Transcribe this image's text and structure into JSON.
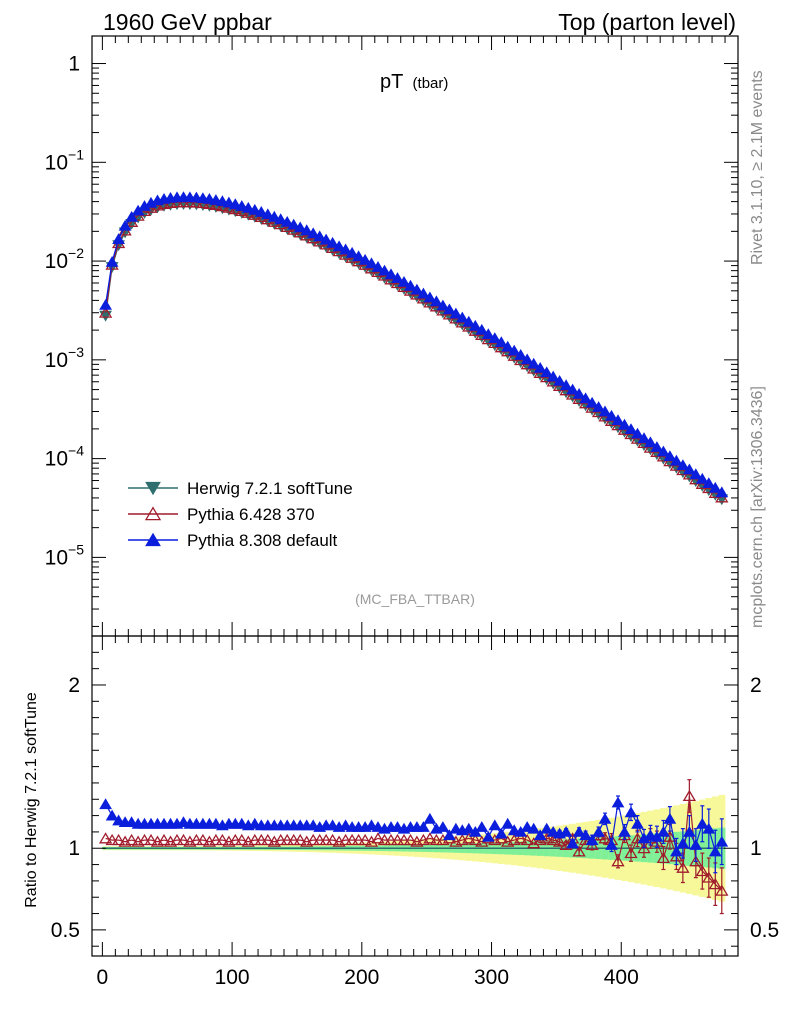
{
  "header": {
    "left": "1960 GeV ppbar",
    "right": "Top (parton level)"
  },
  "side_labels": {
    "rivet": "Rivet 3.1.10, ≥ 2.1M events",
    "mcplots": "mcplots.cern.ch [arXiv:1306.3436]"
  },
  "analysis_tag": "(MC_FBA_TTBAR)",
  "chart_data": [
    {
      "type": "scatter",
      "panel": "main",
      "title": "pT",
      "title_sub": "(tbar)",
      "ylog": true,
      "xlim": [
        -8,
        490
      ],
      "ylim": [
        1.6e-06,
        1.9
      ],
      "y_ticks": [
        {
          "v": 1,
          "label": "1"
        },
        {
          "v": 0.1,
          "label": "10",
          "exp": "−1"
        },
        {
          "v": 0.01,
          "label": "10",
          "exp": "−2"
        },
        {
          "v": 0.001,
          "label": "10",
          "exp": "−3"
        },
        {
          "v": 0.0001,
          "label": "10",
          "exp": "−4"
        },
        {
          "v": 1e-05,
          "label": "10",
          "exp": "−5"
        }
      ],
      "x": [
        2.5,
        7.5,
        12.5,
        17.5,
        22.5,
        27.5,
        32.5,
        37.5,
        42.5,
        47.5,
        52.5,
        57.5,
        62.5,
        67.5,
        72.5,
        77.5,
        82.5,
        87.5,
        92.5,
        97.5,
        102.5,
        107.5,
        112.5,
        117.5,
        122.5,
        127.5,
        132.5,
        137.5,
        142.5,
        147.5,
        152.5,
        157.5,
        162.5,
        167.5,
        172.5,
        177.5,
        182.5,
        187.5,
        192.5,
        197.5,
        202.5,
        207.5,
        212.5,
        217.5,
        222.5,
        227.5,
        232.5,
        237.5,
        242.5,
        247.5,
        252.5,
        257.5,
        262.5,
        267.5,
        272.5,
        277.5,
        282.5,
        287.5,
        292.5,
        297.5,
        302.5,
        307.5,
        312.5,
        317.5,
        322.5,
        327.5,
        332.5,
        337.5,
        342.5,
        347.5,
        352.5,
        357.5,
        362.5,
        367.5,
        372.5,
        377.5,
        382.5,
        387.5,
        392.5,
        397.5,
        402.5,
        407.5,
        412.5,
        417.5,
        422.5,
        427.5,
        432.5,
        437.5,
        442.5,
        447.5,
        452.5,
        457.5,
        462.5,
        467.5,
        472.5,
        477.5
      ],
      "series": [
        {
          "name": "Herwig 7.2.1 softTune",
          "color": "#2f6f6f",
          "marker": "triangle-down-filled",
          "values": [
            0.0028,
            0.0087,
            0.0145,
            0.0195,
            0.0238,
            0.0276,
            0.0307,
            0.0331,
            0.0349,
            0.0362,
            0.0371,
            0.0376,
            0.0378,
            0.0377,
            0.0374,
            0.0369,
            0.0362,
            0.0353,
            0.0343,
            0.0332,
            0.032,
            0.0307,
            0.0294,
            0.0281,
            0.0267,
            0.0253,
            0.0239,
            0.0225,
            0.0212,
            0.0199,
            0.0186,
            0.0174,
            0.0162,
            0.0151,
            0.014,
            0.013,
            0.012,
            0.0111,
            0.0103,
            0.0095,
            0.00876,
            0.00806,
            0.00741,
            0.0068,
            0.00624,
            0.00572,
            0.00523,
            0.00478,
            0.00437,
            0.00399,
            0.00364,
            0.00332,
            0.00302,
            0.00275,
            0.0025,
            0.00228,
            0.00207,
            0.00188,
            0.00171,
            0.00155,
            0.00141,
            0.00128,
            0.00116,
            0.00105,
            0.00095,
            0.00086,
            0.000778,
            0.000704,
            0.000637,
            0.000576,
            0.00052,
            0.00047,
            0.000425,
            0.000384,
            0.000347,
            0.000313,
            0.000283,
            0.000255,
            0.00023,
            0.000208,
            0.000187,
            0.000169,
            0.000152,
            0.000137,
            0.000124,
            0.000111,
            0.0001,
            9e-05,
            8.1e-05,
            7.3e-05,
            6.6e-05,
            5.9e-05,
            5.3e-05,
            4.8e-05,
            4.3e-05,
            3.87e-05
          ]
        },
        {
          "name": "Pythia 6.428 370",
          "color": "#a01c2c",
          "marker": "triangle-up-open",
          "values": [
            0.003,
            0.0092,
            0.0152,
            0.0204,
            0.0249,
            0.0288,
            0.0321,
            0.0346,
            0.0365,
            0.0379,
            0.0388,
            0.0393,
            0.0395,
            0.0394,
            0.0391,
            0.0386,
            0.0379,
            0.037,
            0.0359,
            0.0347,
            0.0335,
            0.0321,
            0.0308,
            0.0294,
            0.028,
            0.0265,
            0.025,
            0.0236,
            0.0222,
            0.0208,
            0.0195,
            0.0182,
            0.017,
            0.0158,
            0.0147,
            0.0136,
            0.0126,
            0.0116,
            0.0108,
            0.00995,
            0.00917,
            0.00844,
            0.00776,
            0.00712,
            0.00653,
            0.00599,
            0.00548,
            0.00501,
            0.00458,
            0.00418,
            0.00381,
            0.00348,
            0.00316,
            0.00288,
            0.00262,
            0.00239,
            0.00217,
            0.00197,
            0.00179,
            0.00162,
            0.00148,
            0.00134,
            0.00122,
            0.0011,
            0.000995,
            0.000901,
            0.000815,
            0.000737,
            0.000667,
            0.000603,
            0.000545,
            0.000492,
            0.000445,
            0.000402,
            0.000363,
            0.000328,
            0.000296,
            0.000267,
            0.000241,
            0.000218,
            0.000196,
            0.000177,
            0.000159,
            0.000144,
            0.000129,
            0.000117,
            0.000105,
            9.42e-05,
            8.48e-05,
            7.65e-05,
            6.91e-05,
            6.18e-05,
            5.55e-05,
            5.03e-05,
            4.5e-05,
            4.05e-05
          ]
        },
        {
          "name": "Pythia 8.308 default",
          "color": "#0a1edc",
          "marker": "triangle-up-filled",
          "values": [
            0.0036,
            0.0098,
            0.0167,
            0.0228,
            0.028,
            0.0324,
            0.0361,
            0.0389,
            0.0411,
            0.0426,
            0.0436,
            0.0442,
            0.0444,
            0.0443,
            0.044,
            0.0434,
            0.0426,
            0.0415,
            0.0404,
            0.0391,
            0.0376,
            0.0361,
            0.0346,
            0.033,
            0.0314,
            0.0298,
            0.0281,
            0.0265,
            0.0249,
            0.0234,
            0.0219,
            0.0205,
            0.0191,
            0.0178,
            0.0165,
            0.0153,
            0.0141,
            0.0131,
            0.0121,
            0.0112,
            0.0103,
            0.00948,
            0.00872,
            0.008,
            0.00734,
            0.00673,
            0.00615,
            0.00562,
            0.00514,
            0.00469,
            0.00428,
            0.00391,
            0.00355,
            0.00324,
            0.00294,
            0.00268,
            0.00243,
            0.00221,
            0.00201,
            0.00182,
            0.00166,
            0.00151,
            0.00136,
            0.00124,
            0.00112,
            0.00101,
            0.000915,
            0.000828,
            0.000749,
            0.000677,
            0.000612,
            0.000553,
            0.0005,
            0.000452,
            0.000408,
            0.000368,
            0.000333,
            0.0003,
            0.000271,
            0.000245,
            0.00022,
            0.000199,
            0.000179,
            0.000161,
            0.000146,
            0.000131,
            0.000118,
            0.000106,
            9.53e-05,
            8.59e-05,
            7.76e-05,
            6.94e-05,
            6.24e-05,
            5.65e-05,
            5.06e-05,
            4.55e-05
          ]
        }
      ]
    },
    {
      "type": "scatter",
      "panel": "ratio",
      "ylabel": "Ratio to Herwig 7.2.1 softTune",
      "xlim": [
        -8,
        490
      ],
      "ylim": [
        0.34,
        2.3
      ],
      "x_ticks": [
        0,
        100,
        200,
        300,
        400
      ],
      "y_ticks": [
        0.5,
        1,
        2
      ],
      "reference": 1,
      "band_inner_color": "#7ff097",
      "band_outer_color": "#f6f89a",
      "x": [
        2.5,
        7.5,
        12.5,
        17.5,
        22.5,
        27.5,
        32.5,
        37.5,
        42.5,
        47.5,
        52.5,
        57.5,
        62.5,
        67.5,
        72.5,
        77.5,
        82.5,
        87.5,
        92.5,
        97.5,
        102.5,
        107.5,
        112.5,
        117.5,
        122.5,
        127.5,
        132.5,
        137.5,
        142.5,
        147.5,
        152.5,
        157.5,
        162.5,
        167.5,
        172.5,
        177.5,
        182.5,
        187.5,
        192.5,
        197.5,
        202.5,
        207.5,
        212.5,
        217.5,
        222.5,
        227.5,
        232.5,
        237.5,
        242.5,
        247.5,
        252.5,
        257.5,
        262.5,
        267.5,
        272.5,
        277.5,
        282.5,
        287.5,
        292.5,
        297.5,
        302.5,
        307.5,
        312.5,
        317.5,
        322.5,
        327.5,
        332.5,
        337.5,
        342.5,
        347.5,
        352.5,
        357.5,
        362.5,
        367.5,
        372.5,
        377.5,
        382.5,
        387.5,
        392.5,
        397.5,
        402.5,
        407.5,
        412.5,
        417.5,
        422.5,
        427.5,
        432.5,
        437.5,
        442.5,
        447.5,
        452.5,
        457.5,
        462.5,
        467.5,
        472.5,
        477.5
      ],
      "series": [
        {
          "name": "Pythia 6.428 370",
          "color": "#a01c2c",
          "marker": "triangle-up-open",
          "values": [
            1.06,
            1.05,
            1.05,
            1.04,
            1.05,
            1.04,
            1.05,
            1.05,
            1.04,
            1.05,
            1.04,
            1.05,
            1.05,
            1.04,
            1.05,
            1.05,
            1.04,
            1.05,
            1.05,
            1.04,
            1.05,
            1.05,
            1.04,
            1.05,
            1.05,
            1.05,
            1.04,
            1.05,
            1.05,
            1.05,
            1.05,
            1.04,
            1.05,
            1.05,
            1.05,
            1.05,
            1.04,
            1.05,
            1.05,
            1.05,
            1.05,
            1.04,
            1.06,
            1.05,
            1.05,
            1.05,
            1.05,
            1.05,
            1.04,
            1.05,
            1.06,
            1.05,
            1.05,
            1.06,
            1.04,
            1.05,
            1.06,
            1.05,
            1.04,
            1.06,
            1.05,
            1.06,
            1.04,
            1.05,
            1.06,
            1.05,
            1.03,
            1.05,
            1.06,
            1.05,
            1.04,
            1.02,
            1.06,
            0.98,
            1.05,
            1.02,
            1.08,
            1.06,
            1.05,
            0.92,
            1.08,
            0.97,
            1.06,
            1.0,
            1.06,
            1.04,
            0.94,
            1.07,
            0.95,
            0.88,
            1.32,
            0.92,
            0.86,
            0.82,
            0.78,
            0.74
          ],
          "errors": [
            0.01,
            0.01,
            0.01,
            0.01,
            0.01,
            0.01,
            0.01,
            0.01,
            0.01,
            0.01,
            0.01,
            0.01,
            0.01,
            0.01,
            0.01,
            0.01,
            0.01,
            0.01,
            0.01,
            0.01,
            0.01,
            0.01,
            0.01,
            0.01,
            0.01,
            0.01,
            0.01,
            0.01,
            0.01,
            0.01,
            0.01,
            0.01,
            0.01,
            0.01,
            0.01,
            0.01,
            0.01,
            0.01,
            0.01,
            0.01,
            0.01,
            0.01,
            0.01,
            0.01,
            0.01,
            0.01,
            0.01,
            0.01,
            0.01,
            0.01,
            0.01,
            0.01,
            0.01,
            0.01,
            0.01,
            0.01,
            0.01,
            0.01,
            0.01,
            0.01,
            0.01,
            0.01,
            0.01,
            0.01,
            0.01,
            0.01,
            0.01,
            0.015,
            0.015,
            0.015,
            0.02,
            0.02,
            0.02,
            0.025,
            0.025,
            0.03,
            0.03,
            0.035,
            0.04,
            0.04,
            0.045,
            0.05,
            0.05,
            0.055,
            0.06,
            0.065,
            0.07,
            0.075,
            0.08,
            0.09,
            0.1,
            0.1,
            0.11,
            0.12,
            0.13,
            0.14
          ]
        },
        {
          "name": "Pythia 8.308 default",
          "color": "#0a1edc",
          "marker": "triangle-up-filled",
          "values": [
            1.27,
            1.2,
            1.17,
            1.16,
            1.16,
            1.15,
            1.15,
            1.15,
            1.15,
            1.15,
            1.15,
            1.15,
            1.16,
            1.15,
            1.15,
            1.15,
            1.15,
            1.15,
            1.14,
            1.15,
            1.15,
            1.15,
            1.14,
            1.15,
            1.14,
            1.14,
            1.14,
            1.14,
            1.14,
            1.14,
            1.14,
            1.14,
            1.14,
            1.13,
            1.14,
            1.14,
            1.13,
            1.14,
            1.13,
            1.13,
            1.13,
            1.14,
            1.13,
            1.12,
            1.13,
            1.13,
            1.12,
            1.13,
            1.13,
            1.13,
            1.18,
            1.12,
            1.13,
            1.08,
            1.12,
            1.11,
            1.12,
            1.1,
            1.13,
            1.07,
            1.14,
            1.09,
            1.15,
            1.11,
            1.1,
            1.13,
            1.12,
            1.08,
            1.12,
            1.1,
            1.09,
            1.1,
            1.03,
            1.1,
            1.08,
            1.05,
            1.1,
            1.18,
            1.02,
            1.28,
            1.1,
            1.22,
            1.15,
            1.06,
            1.08,
            1.07,
            1.1,
            1.18,
            0.98,
            1.03,
            1.1,
            1.02,
            1.15,
            1.12,
            0.98,
            1.04
          ],
          "errors": [
            0.01,
            0.01,
            0.01,
            0.01,
            0.01,
            0.01,
            0.01,
            0.01,
            0.01,
            0.01,
            0.01,
            0.01,
            0.01,
            0.01,
            0.01,
            0.01,
            0.01,
            0.01,
            0.01,
            0.01,
            0.01,
            0.01,
            0.01,
            0.01,
            0.01,
            0.01,
            0.01,
            0.01,
            0.01,
            0.01,
            0.01,
            0.01,
            0.01,
            0.01,
            0.01,
            0.01,
            0.01,
            0.01,
            0.01,
            0.01,
            0.01,
            0.01,
            0.01,
            0.01,
            0.01,
            0.01,
            0.01,
            0.01,
            0.01,
            0.01,
            0.01,
            0.01,
            0.01,
            0.01,
            0.01,
            0.01,
            0.01,
            0.01,
            0.01,
            0.01,
            0.01,
            0.01,
            0.01,
            0.01,
            0.01,
            0.01,
            0.01,
            0.015,
            0.015,
            0.015,
            0.02,
            0.02,
            0.02,
            0.025,
            0.025,
            0.03,
            0.03,
            0.035,
            0.04,
            0.04,
            0.045,
            0.05,
            0.05,
            0.055,
            0.06,
            0.065,
            0.07,
            0.075,
            0.08,
            0.09,
            0.1,
            0.1,
            0.11,
            0.12,
            0.13,
            0.14
          ]
        }
      ]
    }
  ]
}
